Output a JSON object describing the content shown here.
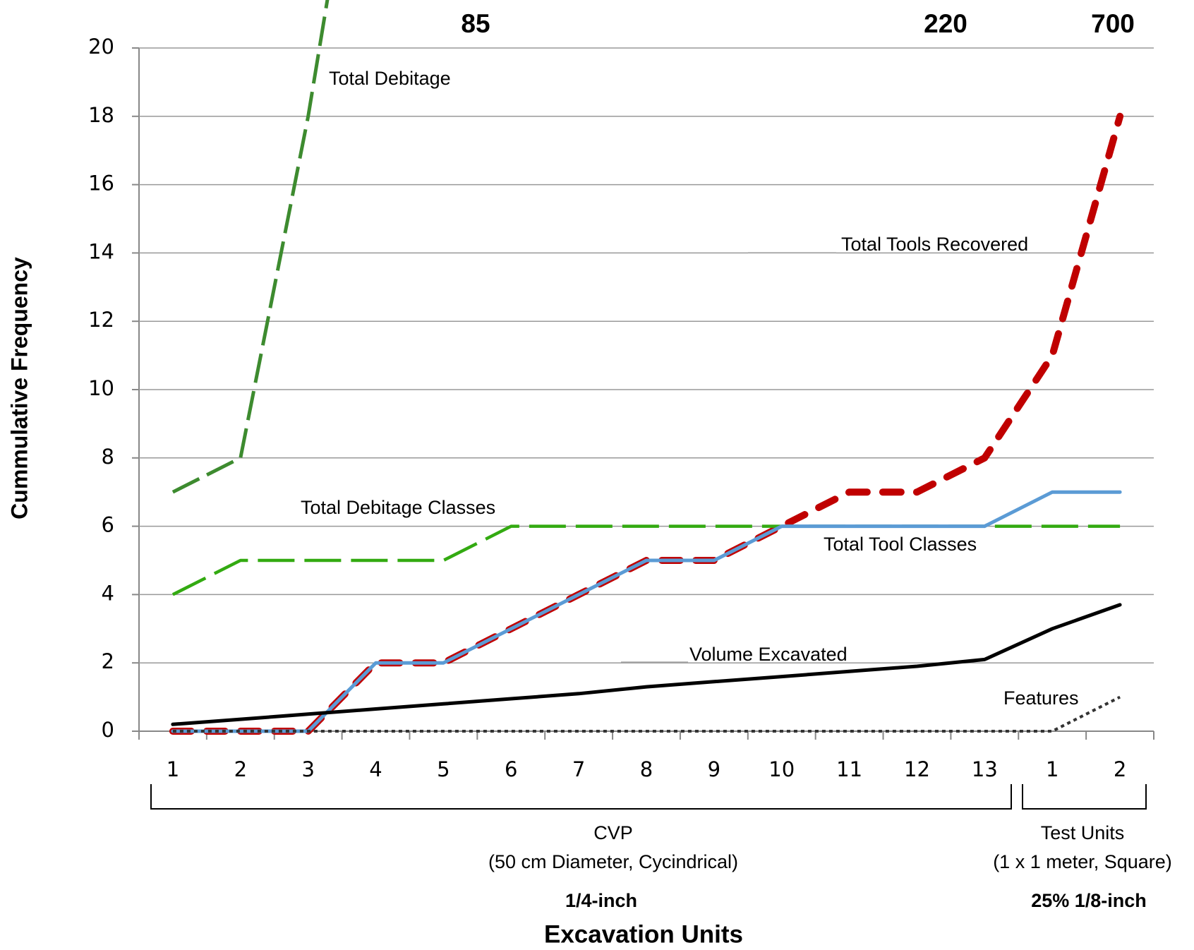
{
  "chart_data": {
    "type": "line",
    "xlabel": "Excavation Units",
    "ylabel": "Cummulative Frequency",
    "categories": [
      "1",
      "2",
      "3",
      "4",
      "5",
      "6",
      "7",
      "8",
      "9",
      "10",
      "11",
      "12",
      "13",
      "1",
      "2"
    ],
    "groups": [
      {
        "name": "CVP",
        "description": "(50 cm Diameter, Cycindrical)",
        "screen": "1/4-inch"
      },
      {
        "name": "Test Units",
        "description": "(1 x 1 meter, Square)",
        "screen": "25% 1/8-inch"
      }
    ],
    "annotations": [
      "85",
      "220",
      "700"
    ],
    "ylim": [
      0,
      20
    ],
    "yticks": [
      0,
      2,
      4,
      6,
      8,
      10,
      12,
      14,
      16,
      18,
      20
    ],
    "grid": true,
    "series": [
      {
        "name": "Total Debitage",
        "color": "#3d8b2f",
        "values": [
          7,
          8,
          18,
          30,
          null,
          null,
          null,
          null,
          null,
          null,
          null,
          null,
          null,
          null,
          null
        ]
      },
      {
        "name": "Total Tools Recovered",
        "color": "#c00000",
        "values": [
          0,
          0,
          0,
          2,
          2,
          3,
          4,
          5,
          5,
          6,
          7,
          7,
          8,
          11,
          18
        ]
      },
      {
        "name": "Total Debitage Classes",
        "color": "#33aa11",
        "values": [
          4,
          5,
          5,
          5,
          5,
          6,
          6,
          6,
          6,
          6,
          6,
          6,
          6,
          6,
          6
        ]
      },
      {
        "name": "Total Tool Classes",
        "color": "#5b9bd5",
        "values": [
          0,
          0,
          0,
          2,
          2,
          3,
          4,
          5,
          5,
          6,
          6,
          6,
          6,
          7,
          7
        ]
      },
      {
        "name": "Volume Excavated",
        "color": "#000000",
        "values": [
          0.2,
          0.35,
          0.5,
          0.65,
          0.8,
          0.95,
          1.1,
          1.3,
          1.45,
          1.6,
          1.75,
          1.9,
          2.1,
          3,
          3.7
        ]
      },
      {
        "name": "Features",
        "color": "#333333",
        "values": [
          0,
          0,
          0,
          0,
          0,
          0,
          0,
          0,
          0,
          0,
          0,
          0,
          0,
          0,
          1
        ]
      }
    ]
  }
}
